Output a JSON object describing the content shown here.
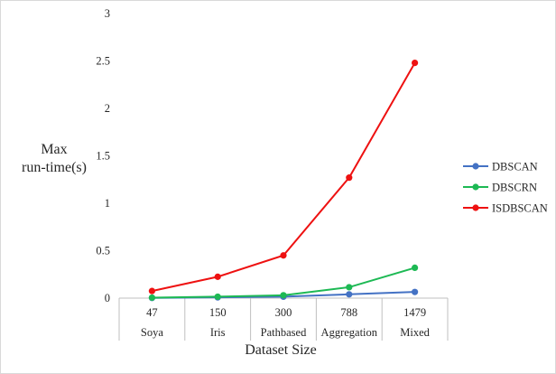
{
  "chart_data": {
    "type": "line",
    "title": "",
    "ylabel_lines": [
      "Max",
      "run-time(s)"
    ],
    "xlabel": "Dataset Size",
    "ylim": [
      0,
      3
    ],
    "yticks": [
      "0",
      "0.5",
      "1",
      "1.5",
      "2",
      "2.5",
      "3"
    ],
    "yticks_values": [
      0,
      0.5,
      1,
      1.5,
      2,
      2.5,
      3
    ],
    "categories": [
      "47",
      "150",
      "300",
      "788",
      "1479"
    ],
    "category_groups": [
      "Soya",
      "Iris",
      "Pathbased",
      "Aggregation",
      "Mixed"
    ],
    "grid": false,
    "legend_position": "right",
    "series": [
      {
        "name": "DBSCAN",
        "color": "#4472C4",
        "values": [
          0.002,
          0.008,
          0.015,
          0.04,
          0.065
        ]
      },
      {
        "name": "DBSCRN",
        "color": "#1DB954",
        "values": [
          0.005,
          0.015,
          0.03,
          0.115,
          0.32
        ]
      },
      {
        "name": "ISDBSCAN",
        "color": "#EE1111",
        "values": [
          0.075,
          0.225,
          0.45,
          1.27,
          2.48
        ]
      }
    ]
  }
}
